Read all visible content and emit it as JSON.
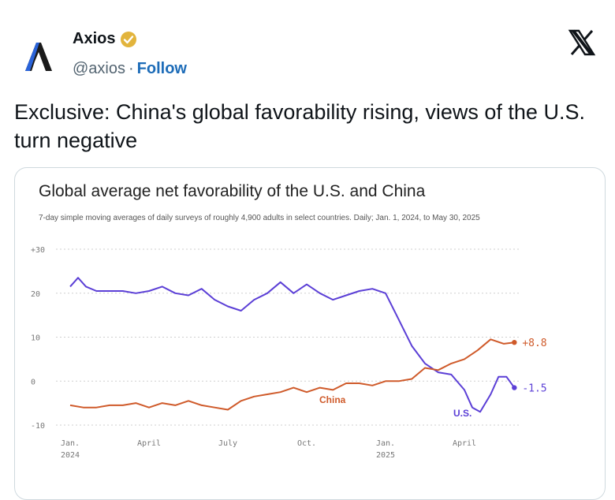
{
  "post": {
    "author_name": "Axios",
    "handle": "@axios",
    "separator": "·",
    "follow_label": "Follow",
    "text": "Exclusive: China's global favorability rising, views of the U.S. turn negative"
  },
  "colors": {
    "us": "#5b3fd6",
    "china": "#cf5a2a",
    "follow": "#1d6cb8",
    "verified": "#e2b43c"
  },
  "icons": {
    "avatar": "axios-logo",
    "verified": "verified-badge-icon",
    "platform": "x-logo-icon"
  },
  "chart_data": {
    "type": "line",
    "title": "Global average net favorability of the U.S. and China",
    "subtitle": "7-day simple moving averages of daily surveys of roughly 4,900 adults in select countries. Daily; Jan. 1, 2024, to May 30, 2025",
    "y_ticks": [
      "+30",
      "20",
      "10",
      "0",
      "-10"
    ],
    "y_tick_values": [
      30,
      20,
      10,
      0,
      -10
    ],
    "ylim": [
      -10,
      30
    ],
    "x_ticks": [
      {
        "label": "Jan.",
        "sub": "2024",
        "month": 0
      },
      {
        "label": "April",
        "sub": "",
        "month": 3
      },
      {
        "label": "July",
        "sub": "",
        "month": 6
      },
      {
        "label": "Oct.",
        "sub": "",
        "month": 9
      },
      {
        "label": "Jan.",
        "sub": "2025",
        "month": 12
      },
      {
        "label": "April",
        "sub": "",
        "month": 15
      }
    ],
    "series": [
      {
        "name": "U.S.",
        "end_label": "-1.5",
        "months": [
          0,
          0.3,
          0.6,
          1,
          1.5,
          2,
          2.5,
          3,
          3.5,
          4,
          4.5,
          5,
          5.5,
          6,
          6.5,
          7,
          7.5,
          8,
          8.5,
          9,
          9.5,
          10,
          10.5,
          11,
          11.5,
          12,
          12.5,
          13,
          13.5,
          14,
          14.5,
          15,
          15.3,
          15.6,
          16,
          16.3,
          16.6,
          16.9
        ],
        "values": [
          21.5,
          23.5,
          21.5,
          20.5,
          20.5,
          20.5,
          20,
          20.5,
          21.5,
          20,
          19.5,
          21,
          18.5,
          17,
          16,
          18.5,
          20,
          22.5,
          20,
          22,
          20,
          18.5,
          19.5,
          20.5,
          21,
          20,
          14,
          8,
          4,
          2,
          1.5,
          -2,
          -6,
          -7,
          -3,
          1,
          1,
          -1.5
        ]
      },
      {
        "name": "China",
        "end_label": "+8.8",
        "months": [
          0,
          0.5,
          1,
          1.5,
          2,
          2.5,
          3,
          3.5,
          4,
          4.5,
          5,
          5.5,
          6,
          6.5,
          7,
          7.5,
          8,
          8.5,
          9,
          9.5,
          10,
          10.5,
          11,
          11.5,
          12,
          12.5,
          13,
          13.5,
          14,
          14.5,
          15,
          15.5,
          16,
          16.5,
          16.9
        ],
        "values": [
          -5.5,
          -6,
          -6,
          -5.5,
          -5.5,
          -5,
          -6,
          -5,
          -5.5,
          -4.5,
          -5.5,
          -6,
          -6.5,
          -4.5,
          -3.5,
          -3,
          -2.5,
          -1.5,
          -2.5,
          -1.5,
          -2,
          -0.5,
          -0.5,
          -1,
          0,
          0,
          0.5,
          3,
          2.5,
          4,
          5,
          7,
          9.5,
          8.5,
          8.8
        ]
      }
    ]
  }
}
